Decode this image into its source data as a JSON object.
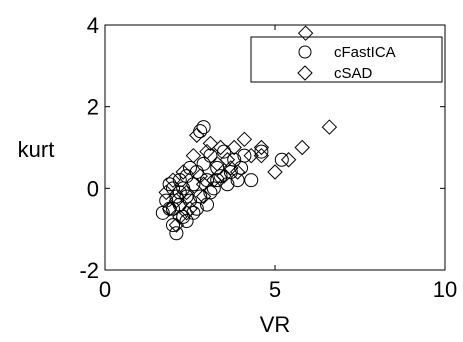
{
  "chart_data": {
    "type": "scatter",
    "title": "",
    "xlabel": "VR",
    "ylabel": "kurt",
    "xlim": [
      0,
      10
    ],
    "ylim": [
      -2,
      4
    ],
    "xticks": [
      "0",
      "5",
      "10"
    ],
    "yticks": [
      "-2",
      "0",
      "2",
      "4"
    ],
    "grid": false,
    "legend_position": "top-right",
    "series": [
      {
        "name": "cFastICA",
        "marker": "circle",
        "color": "#000000",
        "points": [
          [
            1.7,
            -0.6
          ],
          [
            1.8,
            -0.3
          ],
          [
            1.9,
            0.1
          ],
          [
            2.0,
            -0.5
          ],
          [
            2.0,
            -0.9
          ],
          [
            2.1,
            -1.1
          ],
          [
            2.1,
            -0.2
          ],
          [
            2.2,
            0.2
          ],
          [
            2.2,
            -0.4
          ],
          [
            2.3,
            -0.7
          ],
          [
            2.3,
            0.0
          ],
          [
            2.4,
            0.3
          ],
          [
            2.4,
            -0.8
          ],
          [
            2.5,
            -0.3
          ],
          [
            2.5,
            0.5
          ],
          [
            2.6,
            0.1
          ],
          [
            2.6,
            -0.6
          ],
          [
            2.7,
            0.4
          ],
          [
            2.8,
            1.4
          ],
          [
            2.9,
            1.5
          ],
          [
            2.8,
            -0.2
          ],
          [
            2.9,
            0.6
          ],
          [
            3.0,
            0.2
          ],
          [
            3.0,
            -0.4
          ],
          [
            3.1,
            0.8
          ],
          [
            3.2,
            0.0
          ],
          [
            3.3,
            0.5
          ],
          [
            3.4,
            0.3
          ],
          [
            3.5,
            0.9
          ],
          [
            3.6,
            0.1
          ],
          [
            3.7,
            0.4
          ],
          [
            3.8,
            0.7
          ],
          [
            3.9,
            0.2
          ],
          [
            4.0,
            0.5
          ],
          [
            4.1,
            0.8
          ],
          [
            4.3,
            0.2
          ],
          [
            4.6,
            0.9
          ],
          [
            5.2,
            0.7
          ],
          [
            2.0,
            0.0
          ],
          [
            2.2,
            -0.1
          ],
          [
            1.9,
            -0.5
          ],
          [
            2.4,
            -0.2
          ],
          [
            3.3,
            0.2
          ],
          [
            2.7,
            -0.5
          ],
          [
            3.1,
            -0.1
          ]
        ]
      },
      {
        "name": "cSAD",
        "marker": "diamond",
        "color": "#000000",
        "points": [
          [
            1.8,
            -0.1
          ],
          [
            1.9,
            -0.5
          ],
          [
            2.0,
            0.2
          ],
          [
            2.1,
            -0.3
          ],
          [
            2.2,
            -0.7
          ],
          [
            2.3,
            0.4
          ],
          [
            2.4,
            -0.1
          ],
          [
            2.5,
            -0.5
          ],
          [
            2.6,
            0.8
          ],
          [
            2.7,
            1.3
          ],
          [
            2.8,
            0.3
          ],
          [
            2.9,
            -0.2
          ],
          [
            3.0,
            0.9
          ],
          [
            3.1,
            1.1
          ],
          [
            3.2,
            0.2
          ],
          [
            3.3,
            0.6
          ],
          [
            3.4,
            1.0
          ],
          [
            3.5,
            0.3
          ],
          [
            3.6,
            0.7
          ],
          [
            3.7,
            0.5
          ],
          [
            3.8,
            1.0
          ],
          [
            3.9,
            0.4
          ],
          [
            4.1,
            1.2
          ],
          [
            4.3,
            0.8
          ],
          [
            4.6,
            1.0
          ],
          [
            4.6,
            0.8
          ],
          [
            5.0,
            0.4
          ],
          [
            5.4,
            0.7
          ],
          [
            5.8,
            1.0
          ],
          [
            5.9,
            3.8
          ],
          [
            6.6,
            1.5
          ],
          [
            2.1,
            -0.9
          ],
          [
            2.4,
            -0.6
          ],
          [
            2.9,
            0.1
          ]
        ]
      }
    ]
  }
}
